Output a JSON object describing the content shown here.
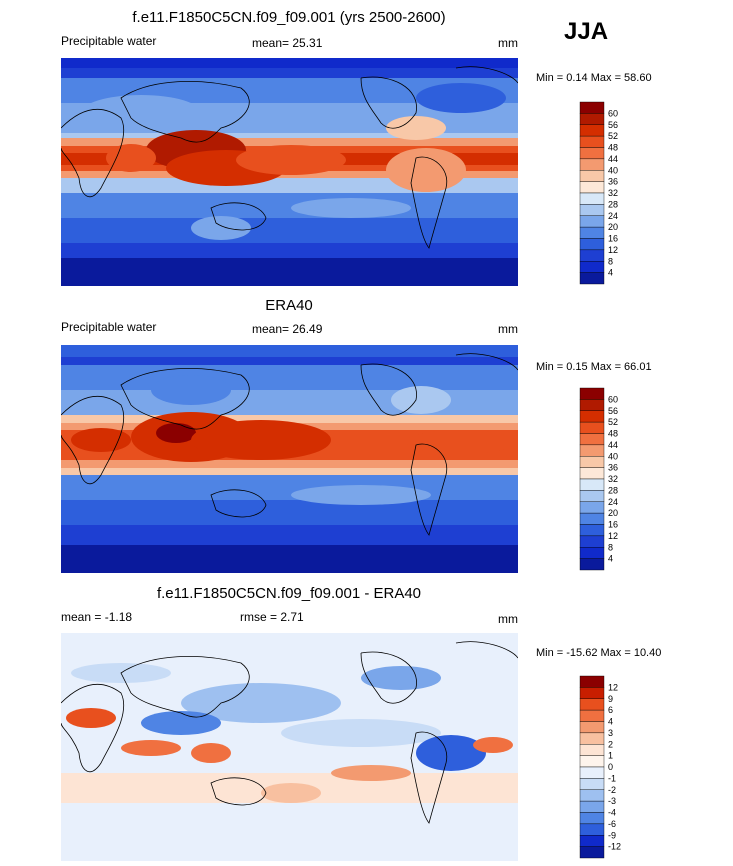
{
  "season": "JJA",
  "panels": [
    {
      "title": "f.e11.F1850C5CN.f09_f09.001 (yrs 2500-2600)",
      "left_label": "Precipitable water",
      "center_label": "mean=  25.31",
      "units": "mm",
      "minmax": "Min =   0.14 Max =  58.60",
      "colorbar": {
        "labels": [
          "60",
          "56",
          "52",
          "48",
          "44",
          "40",
          "36",
          "32",
          "28",
          "24",
          "20",
          "16",
          "12",
          "8",
          "4"
        ],
        "colors": [
          "#8b0000",
          "#b01a00",
          "#d42e00",
          "#e8501e",
          "#f07040",
          "#f39a70",
          "#f8c8a8",
          "#fde8d8",
          "#d8e8f8",
          "#aac8f0",
          "#7aa6ea",
          "#4f84e4",
          "#2e5fdc",
          "#1e3fd2",
          "#102acb",
          "#0a1a9c"
        ]
      }
    },
    {
      "title": "ERA40",
      "left_label": "Precipitable water",
      "center_label": "mean=  26.49",
      "units": "mm",
      "minmax": "Min =   0.15 Max =  66.01",
      "colorbar": {
        "labels": [
          "60",
          "56",
          "52",
          "48",
          "44",
          "40",
          "36",
          "32",
          "28",
          "24",
          "20",
          "16",
          "12",
          "8",
          "4"
        ],
        "colors": [
          "#8b0000",
          "#b01a00",
          "#d42e00",
          "#e8501e",
          "#f07040",
          "#f39a70",
          "#f8c8a8",
          "#fde8d8",
          "#d8e8f8",
          "#aac8f0",
          "#7aa6ea",
          "#4f84e4",
          "#2e5fdc",
          "#1e3fd2",
          "#102acb",
          "#0a1a9c"
        ]
      }
    },
    {
      "title": "f.e11.F1850C5CN.f09_f09.001 - ERA40",
      "left_label": "mean =  -1.18",
      "center_label": "rmse =   2.71",
      "units": "mm",
      "minmax": "Min = -15.62 Max =  10.40",
      "colorbar": {
        "labels": [
          "12",
          "9",
          "6",
          "4",
          "3",
          "2",
          "1",
          "0",
          "-1",
          "-2",
          "-3",
          "-4",
          "-6",
          "-9",
          "-12"
        ],
        "colors": [
          "#8b0000",
          "#c81e00",
          "#e8501e",
          "#f07040",
          "#f39a70",
          "#f8c0a0",
          "#fde4d4",
          "#fef4ec",
          "#e8f0fc",
          "#c8dcf6",
          "#9ec0f0",
          "#7aa6ea",
          "#4f84e4",
          "#2e5fdc",
          "#102acb",
          "#0a1a9c"
        ]
      }
    }
  ]
}
